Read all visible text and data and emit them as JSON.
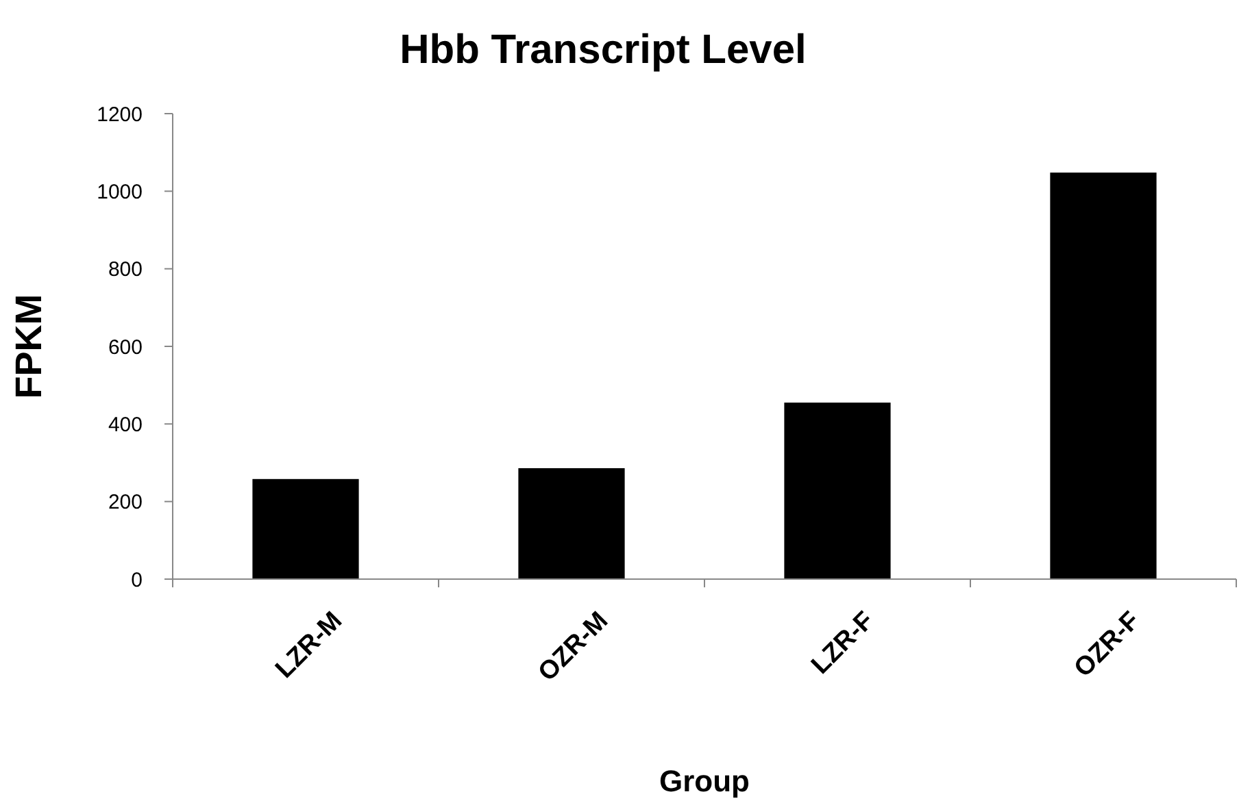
{
  "chart_data": {
    "type": "bar",
    "title": "Hbb Transcript Level",
    "xlabel": "Group",
    "ylabel": "FPKM",
    "categories": [
      "LZR-M",
      "OZR-M",
      "LZR-F",
      "OZR-F"
    ],
    "values": [
      258,
      286,
      455,
      1048
    ],
    "color": "#000000",
    "ylim": [
      0,
      1200
    ],
    "yticks": [
      0,
      200,
      400,
      600,
      800,
      1000,
      1200
    ],
    "grid": false
  }
}
